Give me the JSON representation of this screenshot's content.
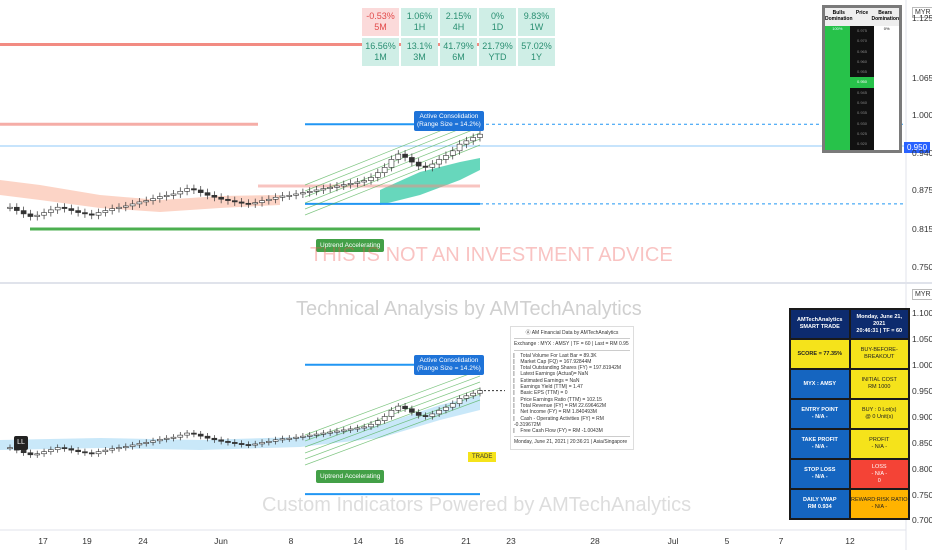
{
  "performance": [
    {
      "value": "-0.53%",
      "period": "5M",
      "positive": false
    },
    {
      "value": "1.06%",
      "period": "1H",
      "positive": true
    },
    {
      "value": "2.15%",
      "period": "4H",
      "positive": true
    },
    {
      "value": "0%",
      "period": "1D",
      "positive": true
    },
    {
      "value": "9.83%",
      "period": "1W",
      "positive": true
    },
    {
      "value": "16.56%",
      "period": "1M",
      "positive": true
    },
    {
      "value": "13.1%",
      "period": "3M",
      "positive": true
    },
    {
      "value": "41.79%",
      "period": "6M",
      "positive": true
    },
    {
      "value": "21.79%",
      "period": "YTD",
      "positive": true
    },
    {
      "value": "57.02%",
      "period": "1Y",
      "positive": true
    }
  ],
  "domination": {
    "headers": [
      "Bulls Domination",
      "Price",
      "Bears Domination"
    ],
    "bulls_value": "100%",
    "bears_value": "0%",
    "prices": [
      "0.975",
      "0.970",
      "0.965",
      "0.960",
      "0.955",
      "0.950",
      "0.945",
      "0.940",
      "0.935",
      "0.930",
      "0.925",
      "0.920"
    ],
    "highlight_price": "0.950"
  },
  "trade_panel": {
    "header_left": "AMTechAnalytics\nSMART TRADE",
    "header_right": "Monday, June 21, 2021\n20:46:31 | TF = 60",
    "rows": [
      {
        "label": "SCORE = 77.35%",
        "value": "BUY-BEFORE-BREAKOUT",
        "style": "yellow",
        "label_style": "yellow"
      },
      {
        "label": "MYX : AMSY",
        "value": "INITIAL COST\nRM 1000",
        "style": "yellow"
      },
      {
        "label": "ENTRY POINT\n- N/A -",
        "value": "BUY : 0 Lot(s)\n@ 0 Unit(s)",
        "style": "yellow"
      },
      {
        "label": "TAKE PROFIT\n- N/A -",
        "value": "PROFIT\n- N/A -",
        "style": "yellow"
      },
      {
        "label": "STOP LOSS\n- N/A -",
        "value": "LOSS\n- N/A -\n0",
        "style": "red"
      },
      {
        "label": "DAILY VWAP\nRM 0.934",
        "value": "REWARD:RISK RATIO\n- N/A -",
        "style": "orange"
      }
    ]
  },
  "info_panel": {
    "title": "Ⓐ AM Financial Data by AMTechAnalytics",
    "exchange": "Exchange : MYX : AMSY | TF = 60 | Last = RM 0.95",
    "lines": [
      "Total Volume For Last Bar = 89.3K",
      "Market Cap (FQ) = 167.92844M",
      "Total Outstanding Shares (FY) = 197.81942M",
      "Latest Earnings (Actual)= NaN",
      "Estimated Earnings = NaN",
      "Earnings Yield (TTM) = 1.47",
      "Basic EPS (TTM) = 0",
      "Price Earnings Ratio (TTM) = 102.15",
      "Total Revenue (FY) = RM 22.696462M",
      "Net Income (FY) = RM 1.840493M",
      "Cash - Operating Activities (FY) = RM -0.319672M",
      "Free Cash Flow (FY) = RM -1.0043M"
    ],
    "footer": "Monday, June 21, 2021 | 20:36:21 | Asia/Singapore"
  },
  "annotations": {
    "callout_top": "Active Consolidation\n(Range Size = 14.2%)",
    "callout_bottom": "Active Consolidation\n(Range Size = 14.2%)",
    "uptrend_top": "Uptrend Accelerating",
    "uptrend_bottom": "Uptrend Accelerating",
    "trade_tag": "TRADE",
    "ll_tag": "LL"
  },
  "watermarks": {
    "disclaimer": "THIS IS NOT AN INVESTMENT ADVICE",
    "technical": "Technical Analysis by AMTechAnalytics",
    "custom": "Custom Indicators Powered by AMTechAnalytics"
  },
  "axes": {
    "currency": "MYR",
    "top_ticks": [
      "1.125",
      "1.065",
      "1.000",
      "0.940",
      "0.875",
      "0.815",
      "0.750"
    ],
    "bottom_ticks": [
      "1.100",
      "1.050",
      "1.000",
      "0.950",
      "0.900",
      "0.850",
      "0.800",
      "0.750",
      "0.700"
    ],
    "x_ticks": [
      "17",
      "19",
      "24",
      "Jun",
      "8",
      "14",
      "16",
      "21",
      "23",
      "28",
      "Jul",
      "5",
      "7",
      "12"
    ],
    "last_price": "0.950"
  },
  "colors": {
    "bull": "#26a69a",
    "bear": "#ef5350",
    "level_blue": "#2196f3",
    "level_green": "#4caf50",
    "level_red": "#f28b82"
  },
  "chart_data": {
    "type": "candlestick",
    "symbol": "MYX:AMSY",
    "timeframe": "60",
    "x_ticks": [
      "17",
      "19",
      "24",
      "Jun",
      "8",
      "14",
      "16",
      "21",
      "23",
      "28",
      "Jul",
      "5",
      "7",
      "12"
    ],
    "close": [
      0.84,
      0.835,
      0.83,
      0.826,
      0.828,
      0.832,
      0.836,
      0.84,
      0.838,
      0.835,
      0.832,
      0.83,
      0.828,
      0.832,
      0.835,
      0.838,
      0.84,
      0.842,
      0.845,
      0.848,
      0.85,
      0.853,
      0.856,
      0.858,
      0.86,
      0.864,
      0.868,
      0.866,
      0.862,
      0.858,
      0.855,
      0.852,
      0.85,
      0.848,
      0.846,
      0.845,
      0.847,
      0.85,
      0.852,
      0.855,
      0.857,
      0.858,
      0.86,
      0.862,
      0.864,
      0.866,
      0.868,
      0.87,
      0.872,
      0.874,
      0.876,
      0.878,
      0.88,
      0.885,
      0.892,
      0.9,
      0.912,
      0.92,
      0.915,
      0.908,
      0.902,
      0.9,
      0.905,
      0.912,
      0.918,
      0.925,
      0.935,
      0.94,
      0.945,
      0.95
    ],
    "levels_top": {
      "resistance": 0.965,
      "support": 0.845,
      "lower_support": 0.82,
      "red_line": 1.085
    },
    "ylim_top": [
      0.75,
      1.15
    ],
    "ylim_bottom": [
      0.7,
      1.12
    ]
  }
}
